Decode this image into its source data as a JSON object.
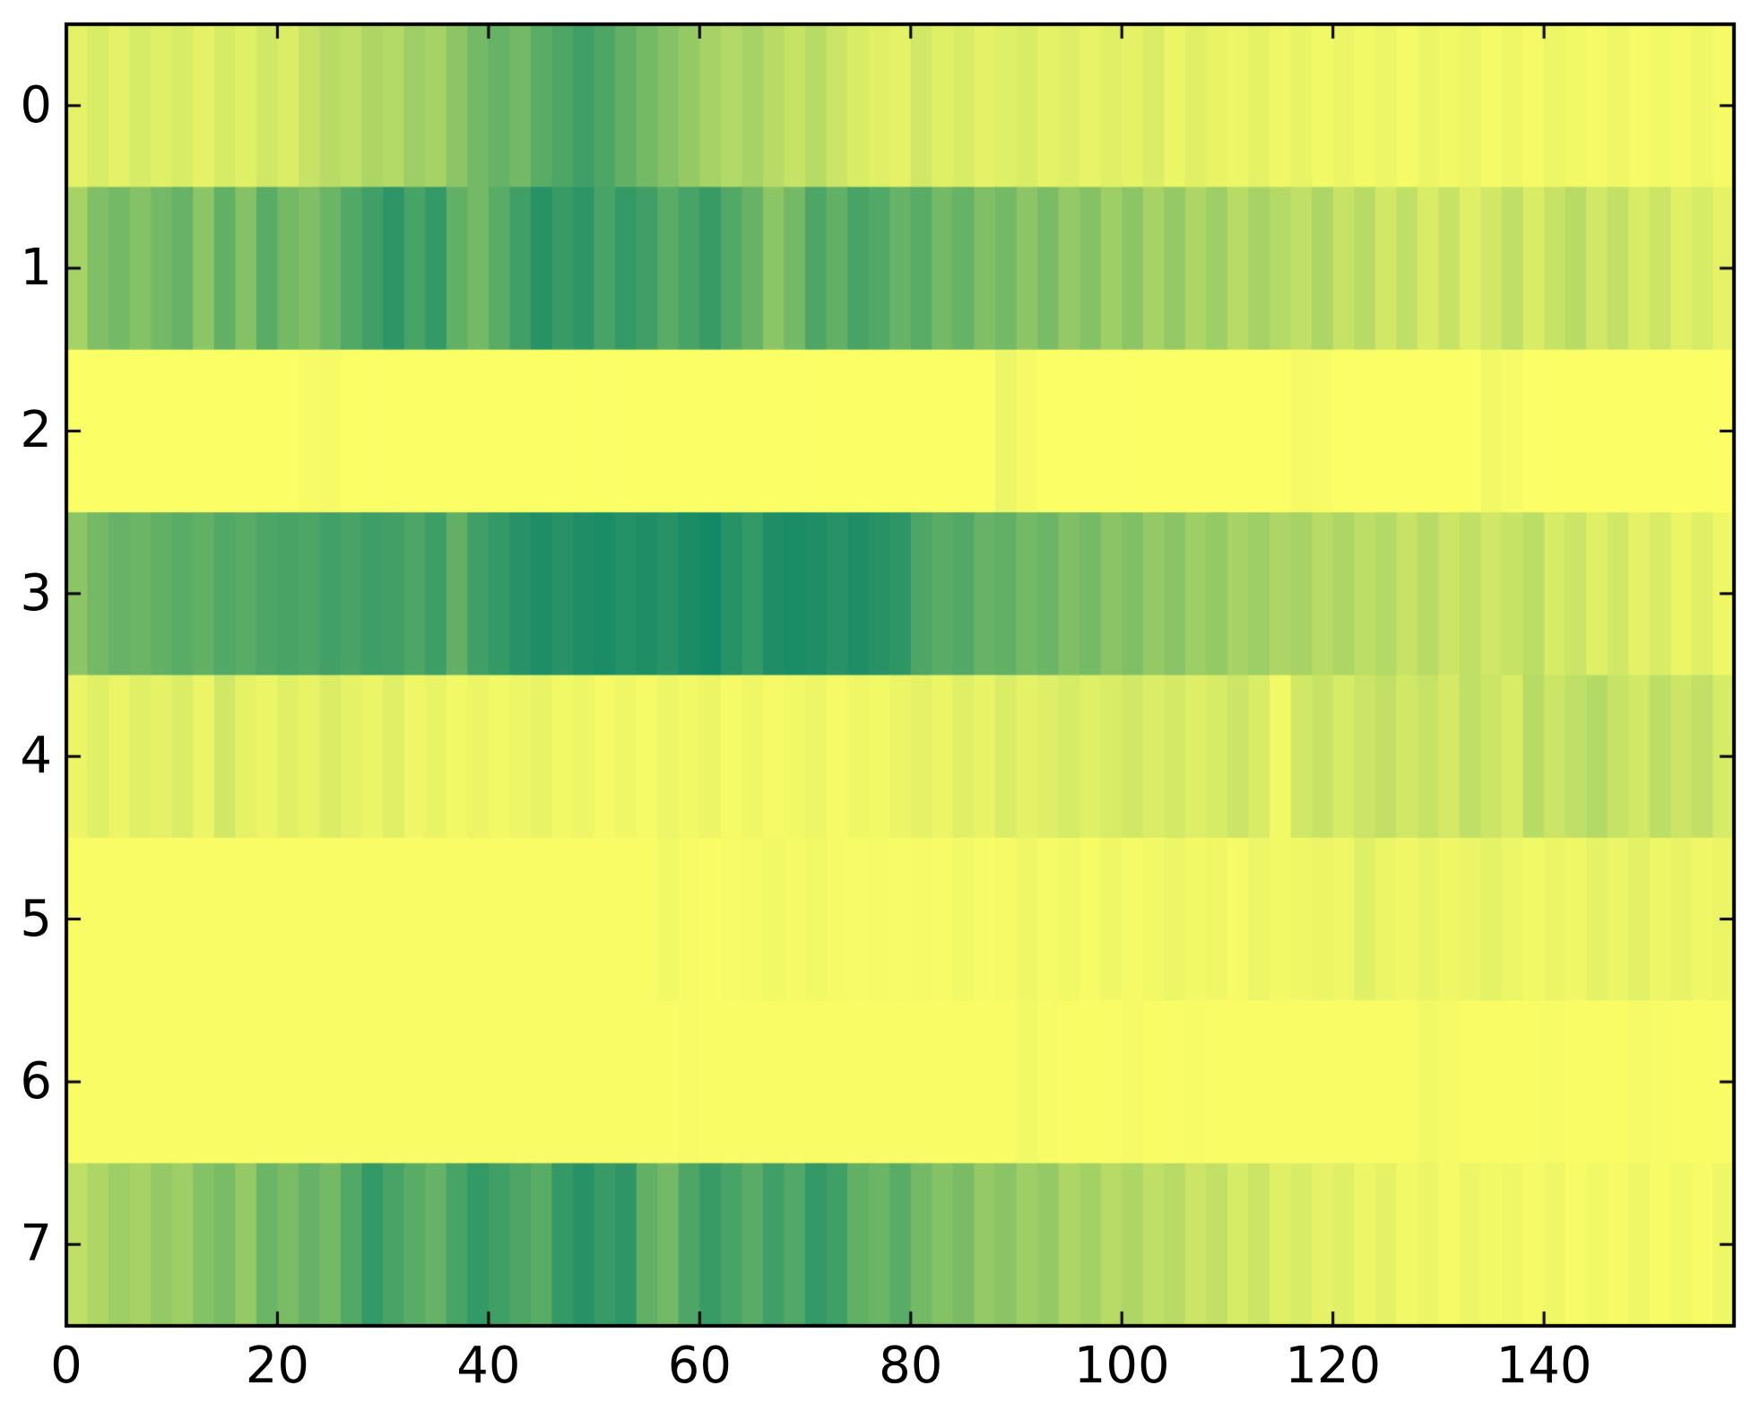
{
  "figure": {
    "background": "#ffffff",
    "spine_color": "#000000",
    "tick_color": "#000000"
  },
  "chart_data": {
    "type": "heatmap",
    "title": "",
    "xlabel": "",
    "ylabel": "",
    "legend": "none",
    "grid": false,
    "x_range": [
      0,
      158
    ],
    "n_rows": 8,
    "n_cols": 158,
    "sample_step": 2,
    "x_tick_values": [
      0,
      20,
      40,
      60,
      80,
      100,
      120,
      140
    ],
    "x_tick_labels": [
      "0",
      "20",
      "40",
      "60",
      "80",
      "100",
      "120",
      "140"
    ],
    "y_tick_values": [
      0,
      1,
      2,
      3,
      4,
      5,
      6,
      7
    ],
    "y_tick_labels": [
      "0",
      "1",
      "2",
      "3",
      "4",
      "5",
      "6",
      "7"
    ],
    "colormap": {
      "name": "summer-reversed-intensity",
      "low": "#ffff66",
      "high": "#007f66",
      "value_meaning": "0 = bright yellow (low), 1 = dark teal green (high)"
    },
    "rows": [
      [
        0.1,
        0.15,
        0.1,
        0.16,
        0.12,
        0.15,
        0.1,
        0.16,
        0.12,
        0.18,
        0.14,
        0.22,
        0.28,
        0.25,
        0.32,
        0.3,
        0.38,
        0.35,
        0.45,
        0.55,
        0.6,
        0.55,
        0.65,
        0.7,
        0.75,
        0.7,
        0.62,
        0.55,
        0.48,
        0.42,
        0.35,
        0.3,
        0.35,
        0.28,
        0.22,
        0.28,
        0.2,
        0.15,
        0.12,
        0.1,
        0.18,
        0.12,
        0.15,
        0.1,
        0.12,
        0.15,
        0.1,
        0.13,
        0.09,
        0.12,
        0.1,
        0.14,
        0.08,
        0.12,
        0.09,
        0.07,
        0.1,
        0.06,
        0.09,
        0.05,
        0.08,
        0.05,
        0.07,
        0.04,
        0.08,
        0.05,
        0.07,
        0.04,
        0.06,
        0.04,
        0.07,
        0.05,
        0.04,
        0.06,
        0.03,
        0.05,
        0.04,
        0.06,
        0.04
      ],
      [
        0.35,
        0.5,
        0.55,
        0.48,
        0.55,
        0.6,
        0.45,
        0.62,
        0.48,
        0.65,
        0.55,
        0.5,
        0.58,
        0.68,
        0.75,
        0.82,
        0.72,
        0.8,
        0.62,
        0.55,
        0.65,
        0.75,
        0.85,
        0.78,
        0.82,
        0.72,
        0.8,
        0.75,
        0.65,
        0.72,
        0.78,
        0.68,
        0.6,
        0.45,
        0.55,
        0.7,
        0.62,
        0.72,
        0.68,
        0.6,
        0.65,
        0.55,
        0.6,
        0.5,
        0.55,
        0.45,
        0.52,
        0.42,
        0.48,
        0.38,
        0.45,
        0.35,
        0.42,
        0.32,
        0.38,
        0.28,
        0.35,
        0.3,
        0.25,
        0.32,
        0.22,
        0.28,
        0.18,
        0.25,
        0.15,
        0.22,
        0.12,
        0.18,
        0.25,
        0.15,
        0.22,
        0.28,
        0.18,
        0.24,
        0.15,
        0.2,
        0.12,
        0.16,
        0.1
      ],
      [
        0.01,
        0.01,
        0.01,
        0.01,
        0.01,
        0.01,
        0.01,
        0.01,
        0.01,
        0.01,
        0.01,
        0.03,
        0.04,
        0.01,
        0.01,
        0.01,
        0.01,
        0.01,
        0.01,
        0.01,
        0.01,
        0.01,
        0.01,
        0.01,
        0.01,
        0.01,
        0.01,
        0.01,
        0.01,
        0.01,
        0.01,
        0.01,
        0.01,
        0.01,
        0.01,
        0.01,
        0.01,
        0.01,
        0.01,
        0.01,
        0.01,
        0.01,
        0.01,
        0.01,
        0.07,
        0.04,
        0.01,
        0.01,
        0.01,
        0.01,
        0.01,
        0.01,
        0.01,
        0.01,
        0.01,
        0.01,
        0.01,
        0.01,
        0.04,
        0.03,
        0.01,
        0.01,
        0.01,
        0.01,
        0.01,
        0.01,
        0.01,
        0.05,
        0.03,
        0.01,
        0.01,
        0.01,
        0.01,
        0.01,
        0.01,
        0.01,
        0.01,
        0.01,
        0.01
      ],
      [
        0.45,
        0.55,
        0.6,
        0.58,
        0.62,
        0.65,
        0.62,
        0.68,
        0.65,
        0.7,
        0.72,
        0.7,
        0.74,
        0.72,
        0.76,
        0.74,
        0.7,
        0.76,
        0.62,
        0.75,
        0.8,
        0.85,
        0.88,
        0.85,
        0.88,
        0.9,
        0.86,
        0.88,
        0.85,
        0.9,
        0.92,
        0.85,
        0.8,
        0.88,
        0.9,
        0.88,
        0.85,
        0.88,
        0.85,
        0.82,
        0.7,
        0.65,
        0.68,
        0.6,
        0.62,
        0.55,
        0.58,
        0.5,
        0.54,
        0.46,
        0.5,
        0.42,
        0.46,
        0.38,
        0.42,
        0.35,
        0.38,
        0.32,
        0.35,
        0.28,
        0.32,
        0.26,
        0.3,
        0.22,
        0.28,
        0.2,
        0.25,
        0.18,
        0.22,
        0.26,
        0.16,
        0.2,
        0.12,
        0.18,
        0.1,
        0.15,
        0.08,
        0.12,
        0.06
      ],
      [
        0.08,
        0.12,
        0.08,
        0.12,
        0.1,
        0.14,
        0.08,
        0.18,
        0.1,
        0.08,
        0.12,
        0.09,
        0.14,
        0.1,
        0.08,
        0.12,
        0.06,
        0.09,
        0.05,
        0.08,
        0.05,
        0.07,
        0.09,
        0.05,
        0.07,
        0.04,
        0.06,
        0.04,
        0.07,
        0.05,
        0.08,
        0.04,
        0.06,
        0.04,
        0.05,
        0.07,
        0.04,
        0.06,
        0.05,
        0.08,
        0.1,
        0.08,
        0.12,
        0.09,
        0.14,
        0.1,
        0.13,
        0.16,
        0.12,
        0.15,
        0.18,
        0.14,
        0.17,
        0.13,
        0.16,
        0.2,
        0.15,
        0.05,
        0.18,
        0.22,
        0.16,
        0.2,
        0.24,
        0.18,
        0.22,
        0.17,
        0.25,
        0.2,
        0.15,
        0.28,
        0.2,
        0.25,
        0.3,
        0.22,
        0.18,
        0.26,
        0.2,
        0.24,
        0.16
      ],
      [
        0.02,
        0.02,
        0.02,
        0.02,
        0.02,
        0.02,
        0.02,
        0.02,
        0.02,
        0.02,
        0.02,
        0.02,
        0.02,
        0.02,
        0.02,
        0.02,
        0.02,
        0.02,
        0.02,
        0.02,
        0.02,
        0.02,
        0.02,
        0.02,
        0.02,
        0.02,
        0.02,
        0.02,
        0.05,
        0.03,
        0.02,
        0.03,
        0.04,
        0.05,
        0.04,
        0.05,
        0.04,
        0.03,
        0.04,
        0.03,
        0.04,
        0.03,
        0.05,
        0.03,
        0.04,
        0.06,
        0.04,
        0.05,
        0.03,
        0.06,
        0.04,
        0.05,
        0.07,
        0.05,
        0.06,
        0.04,
        0.07,
        0.05,
        0.06,
        0.08,
        0.06,
        0.12,
        0.08,
        0.06,
        0.09,
        0.06,
        0.08,
        0.1,
        0.07,
        0.05,
        0.08,
        0.06,
        0.1,
        0.08,
        0.11,
        0.07,
        0.09,
        0.06,
        0.08
      ],
      [
        0.02,
        0.02,
        0.02,
        0.02,
        0.02,
        0.02,
        0.02,
        0.02,
        0.02,
        0.02,
        0.02,
        0.02,
        0.02,
        0.02,
        0.02,
        0.02,
        0.02,
        0.02,
        0.02,
        0.02,
        0.02,
        0.02,
        0.02,
        0.02,
        0.02,
        0.02,
        0.02,
        0.02,
        0.02,
        0.03,
        0.02,
        0.02,
        0.02,
        0.02,
        0.02,
        0.02,
        0.02,
        0.02,
        0.02,
        0.02,
        0.02,
        0.02,
        0.02,
        0.02,
        0.02,
        0.05,
        0.03,
        0.02,
        0.02,
        0.02,
        0.04,
        0.02,
        0.02,
        0.03,
        0.02,
        0.02,
        0.02,
        0.02,
        0.02,
        0.02,
        0.02,
        0.02,
        0.02,
        0.02,
        0.05,
        0.04,
        0.02,
        0.02,
        0.02,
        0.02,
        0.03,
        0.02,
        0.02,
        0.02,
        0.04,
        0.03,
        0.02,
        0.02,
        0.02
      ],
      [
        0.25,
        0.32,
        0.38,
        0.35,
        0.42,
        0.38,
        0.48,
        0.52,
        0.42,
        0.58,
        0.52,
        0.6,
        0.55,
        0.68,
        0.8,
        0.72,
        0.65,
        0.6,
        0.72,
        0.8,
        0.75,
        0.7,
        0.65,
        0.8,
        0.85,
        0.78,
        0.82,
        0.62,
        0.55,
        0.7,
        0.78,
        0.72,
        0.65,
        0.75,
        0.68,
        0.8,
        0.75,
        0.62,
        0.58,
        0.65,
        0.55,
        0.48,
        0.52,
        0.42,
        0.46,
        0.38,
        0.42,
        0.32,
        0.36,
        0.28,
        0.32,
        0.25,
        0.28,
        0.2,
        0.24,
        0.16,
        0.2,
        0.12,
        0.15,
        0.1,
        0.12,
        0.07,
        0.1,
        0.05,
        0.08,
        0.04,
        0.07,
        0.05,
        0.06,
        0.04,
        0.06,
        0.03,
        0.05,
        0.04,
        0.06,
        0.03,
        0.05,
        0.03,
        0.06
      ]
    ]
  }
}
